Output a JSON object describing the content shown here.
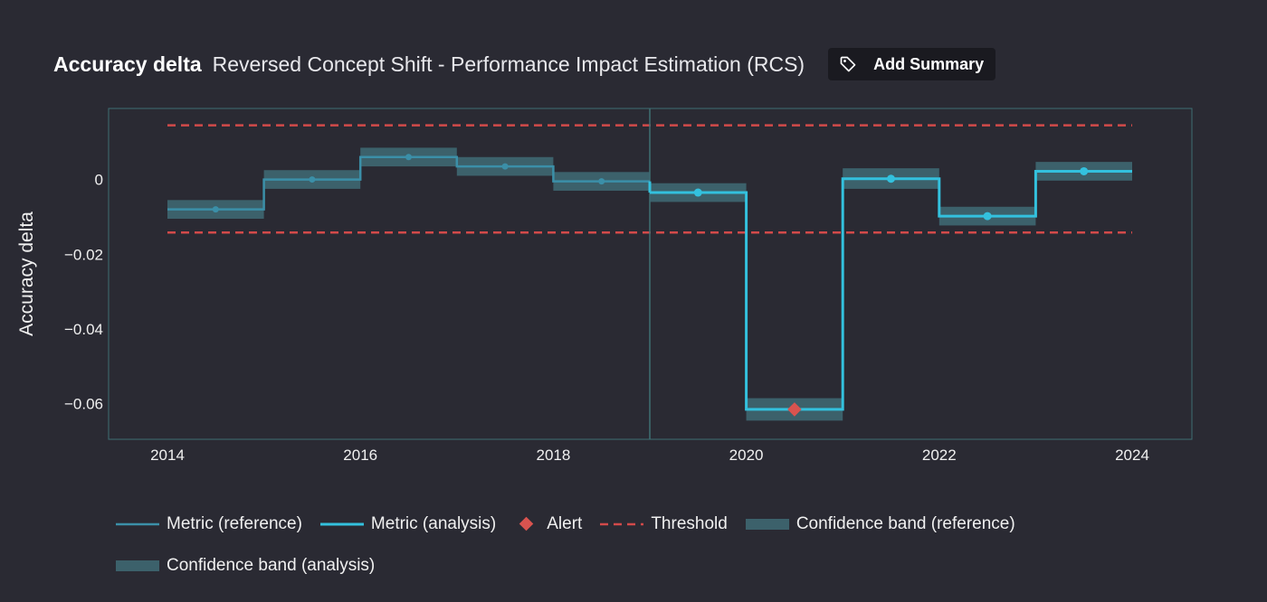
{
  "header": {
    "title": "Accuracy delta",
    "subtitle": "Reversed Concept Shift - Performance Impact Estimation (RCS)",
    "add_summary_label": "Add Summary"
  },
  "colors": {
    "background": "#2a2a33",
    "reference_line": "#3b8fa8",
    "analysis_line": "#33c1de",
    "band": "#3f6b76",
    "threshold": "#d24a4a",
    "alert": "#d9534f",
    "frame": "#3e6f73"
  },
  "chart_data": {
    "type": "line",
    "ylabel": "Accuracy delta",
    "xlabel": "",
    "xlim": [
      2014,
      2025
    ],
    "ylim": [
      -0.0695,
      0.019
    ],
    "x_ticks": [
      2014,
      2016,
      2018,
      2020,
      2022,
      2024
    ],
    "x_tick_labels": [
      "2014",
      "2016",
      "2018",
      "2020",
      "2022",
      "2024"
    ],
    "y_ticks": [
      0,
      -0.02,
      -0.04,
      -0.06
    ],
    "y_tick_labels": [
      "0",
      "−0.02",
      "−0.04",
      "−0.06"
    ],
    "split_x": 2019,
    "threshold_upper": 0.0145,
    "threshold_lower": -0.0142,
    "reference": {
      "name": "Metric (reference)",
      "periods": [
        {
          "start": 2014,
          "end": 2015,
          "value": -0.008,
          "lower": -0.0105,
          "upper": -0.0055
        },
        {
          "start": 2015,
          "end": 2016,
          "value": 0.0,
          "lower": -0.0025,
          "upper": 0.0025
        },
        {
          "start": 2016,
          "end": 2017,
          "value": 0.006,
          "lower": 0.0035,
          "upper": 0.0085
        },
        {
          "start": 2017,
          "end": 2018,
          "value": 0.0035,
          "lower": 0.001,
          "upper": 0.006
        },
        {
          "start": 2018,
          "end": 2019,
          "value": -0.0005,
          "lower": -0.003,
          "upper": 0.002
        }
      ]
    },
    "analysis": {
      "name": "Metric (analysis)",
      "periods": [
        {
          "start": 2019,
          "end": 2020,
          "value": -0.0035,
          "lower": -0.006,
          "upper": -0.001
        },
        {
          "start": 2020,
          "end": 2021,
          "value": -0.0615,
          "lower": -0.0645,
          "upper": -0.0585
        },
        {
          "start": 2021,
          "end": 2022,
          "value": 0.0002,
          "lower": -0.0025,
          "upper": 0.003
        },
        {
          "start": 2022,
          "end": 2023,
          "value": -0.0098,
          "lower": -0.0123,
          "upper": -0.0073
        },
        {
          "start": 2023,
          "end": 2024,
          "value": 0.0022,
          "lower": -0.0003,
          "upper": 0.0047
        }
      ]
    },
    "alerts": [
      {
        "x": 2020.5,
        "value": -0.0615
      }
    ],
    "legend": [
      {
        "key": "metric_reference",
        "label": "Metric (reference)"
      },
      {
        "key": "metric_analysis",
        "label": "Metric (analysis)"
      },
      {
        "key": "alert",
        "label": "Alert"
      },
      {
        "key": "threshold",
        "label": "Threshold"
      },
      {
        "key": "band_reference",
        "label": "Confidence band (reference)"
      },
      {
        "key": "band_analysis",
        "label": "Confidence band (analysis)"
      }
    ]
  }
}
